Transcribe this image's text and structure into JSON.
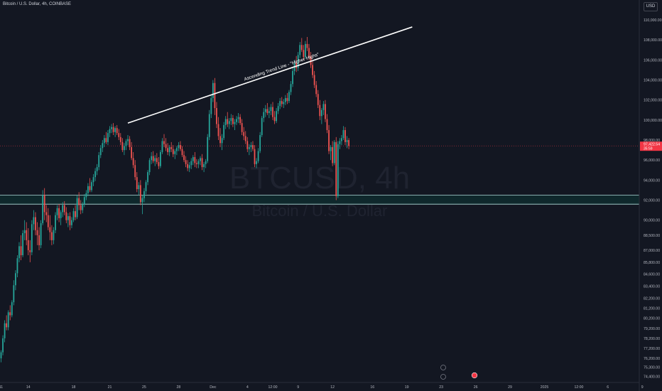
{
  "header": {
    "symbol_text": "Bitcoin / U.S. Dollar, 4h, COINBASE",
    "currency_label": "USD"
  },
  "watermark": {
    "ticker": "BTCUSD, 4h",
    "name": "Bitcoin / U.S. Dollar"
  },
  "annotation": {
    "trendline_label": "Ascending Trend Line - \"Higher Highs\""
  },
  "price_tag": {
    "value": "97,422.54",
    "countdown": "35:59",
    "color": "#f23645"
  },
  "colors": {
    "background": "#131722",
    "up": "#26a69a",
    "down": "#ef5350",
    "zone": "#0f2a2d",
    "zone_border": "#b2dfdb",
    "trendline": "#ffffff",
    "price_line": "#f23645"
  },
  "chart_data": {
    "type": "candlestick",
    "timeframe": "4h",
    "ylim": [
      74000,
      111000
    ],
    "yticks": [
      {
        "value": 110000,
        "label": "110,000.00"
      },
      {
        "value": 108000,
        "label": "108,000.00"
      },
      {
        "value": 106000,
        "label": "106,000.00"
      },
      {
        "value": 104000,
        "label": "104,000.00"
      },
      {
        "value": 102000,
        "label": "102,000.00"
      },
      {
        "value": 100000,
        "label": "100,000.00"
      },
      {
        "value": 98000,
        "label": "98,000.00"
      },
      {
        "value": 96000,
        "label": "96,000.00"
      },
      {
        "value": 94000,
        "label": "94,000.00"
      },
      {
        "value": 92000,
        "label": "92,000.00"
      },
      {
        "value": 90000,
        "label": "90,000.00"
      },
      {
        "value": 88500,
        "label": "88,500.00"
      },
      {
        "value": 87000,
        "label": "87,000.00"
      },
      {
        "value": 85800,
        "label": "85,800.00"
      },
      {
        "value": 84600,
        "label": "84,600.00"
      },
      {
        "value": 83400,
        "label": "83,400.00"
      },
      {
        "value": 82200,
        "label": "82,200.00"
      },
      {
        "value": 81200,
        "label": "81,200.00"
      },
      {
        "value": 80200,
        "label": "80,200.00"
      },
      {
        "value": 79200,
        "label": "79,200.00"
      },
      {
        "value": 78200,
        "label": "78,200.00"
      },
      {
        "value": 77200,
        "label": "77,200.00"
      },
      {
        "value": 76200,
        "label": "76,200.00"
      },
      {
        "value": 75300,
        "label": "75,300.00"
      },
      {
        "value": 74400,
        "label": "74,400.00"
      }
    ],
    "xticks": [
      {
        "bar": 0,
        "label": "11"
      },
      {
        "bar": 15,
        "label": "14"
      },
      {
        "bar": 40,
        "label": "18"
      },
      {
        "bar": 60,
        "label": "21"
      },
      {
        "bar": 79,
        "label": "25"
      },
      {
        "bar": 98,
        "label": "28"
      },
      {
        "bar": 117,
        "label": "Dec"
      },
      {
        "bar": 136,
        "label": "4"
      },
      {
        "bar": 150,
        "label": "12:00"
      },
      {
        "bar": 164,
        "label": "9"
      },
      {
        "bar": 183,
        "label": "12"
      },
      {
        "bar": 205,
        "label": "16"
      },
      {
        "bar": 224,
        "label": "19"
      },
      {
        "bar": 243,
        "label": "23"
      },
      {
        "bar": 262,
        "label": "26"
      },
      {
        "bar": 281,
        "label": "29"
      },
      {
        "bar": 300,
        "label": "2025"
      },
      {
        "bar": 319,
        "label": "12:00"
      },
      {
        "bar": 335,
        "label": "6"
      },
      {
        "bar": 354,
        "label": "9"
      }
    ],
    "support_zone": {
      "low": 91600,
      "high": 92500
    },
    "current_price": 97422.54,
    "trendline": {
      "start": {
        "bar": 70,
        "price": 99700
      },
      "end": {
        "bar": 227,
        "price": 109300
      }
    },
    "ohlc": [
      [
        76200,
        77000,
        75800,
        76800
      ],
      [
        76800,
        78500,
        76500,
        78200
      ],
      [
        78200,
        80000,
        77800,
        79700
      ],
      [
        79700,
        80500,
        79000,
        79300
      ],
      [
        79300,
        81000,
        79000,
        80800
      ],
      [
        80800,
        81500,
        80000,
        80500
      ],
      [
        80500,
        82000,
        80300,
        81800
      ],
      [
        81800,
        84000,
        81500,
        83500
      ],
      [
        83500,
        85000,
        83000,
        84700
      ],
      [
        84700,
        86500,
        84300,
        86200
      ],
      [
        86200,
        87800,
        85800,
        87400
      ],
      [
        87400,
        88500,
        86000,
        86500
      ],
      [
        86500,
        89000,
        86300,
        88700
      ],
      [
        88700,
        90000,
        88000,
        89000
      ],
      [
        89000,
        89800,
        87500,
        88000
      ],
      [
        88000,
        89200,
        86500,
        87000
      ],
      [
        87000,
        88000,
        85800,
        86800
      ],
      [
        86800,
        90000,
        86500,
        89600
      ],
      [
        89600,
        91000,
        89000,
        90300
      ],
      [
        90300,
        90800,
        88500,
        89000
      ],
      [
        89000,
        89800,
        87500,
        88500
      ],
      [
        88500,
        89300,
        87000,
        87500
      ],
      [
        87500,
        90000,
        87200,
        89700
      ],
      [
        89700,
        93000,
        89500,
        92500
      ],
      [
        92500,
        93200,
        90000,
        90800
      ],
      [
        90800,
        91500,
        89800,
        90500
      ],
      [
        90500,
        91200,
        89000,
        89300
      ],
      [
        89300,
        90500,
        88000,
        88800
      ],
      [
        88800,
        89500,
        87500,
        88000
      ],
      [
        88000,
        89300,
        87600,
        89000
      ],
      [
        89000,
        90800,
        88700,
        90500
      ],
      [
        90500,
        91500,
        90000,
        91200
      ],
      [
        91200,
        91600,
        89800,
        90200
      ],
      [
        90200,
        91000,
        89500,
        90800
      ],
      [
        90800,
        91800,
        90300,
        91500
      ],
      [
        91500,
        91900,
        90500,
        90800
      ],
      [
        90800,
        91300,
        89700,
        90000
      ],
      [
        90000,
        90700,
        89300,
        90400
      ],
      [
        90400,
        90800,
        89000,
        89500
      ],
      [
        89500,
        90300,
        89200,
        90000
      ],
      [
        90000,
        91200,
        89800,
        90900
      ],
      [
        90900,
        91500,
        90000,
        90300
      ],
      [
        90300,
        92500,
        90100,
        92200
      ],
      [
        92200,
        92800,
        91000,
        91500
      ],
      [
        91500,
        92000,
        90600,
        91000
      ],
      [
        91000,
        91800,
        90700,
        91600
      ],
      [
        91600,
        92600,
        91300,
        92300
      ],
      [
        92300,
        93000,
        92000,
        92700
      ],
      [
        92700,
        93700,
        92400,
        93400
      ],
      [
        93400,
        94200,
        92800,
        93000
      ],
      [
        93000,
        94000,
        92800,
        93800
      ],
      [
        93800,
        94600,
        93400,
        94300
      ],
      [
        94300,
        95200,
        93900,
        94900
      ],
      [
        94900,
        95600,
        94500,
        95300
      ],
      [
        95300,
        96800,
        95000,
        96500
      ],
      [
        96500,
        97500,
        96200,
        97200
      ],
      [
        97200,
        98000,
        96800,
        97700
      ],
      [
        97700,
        98500,
        97300,
        98200
      ],
      [
        98200,
        98800,
        97600,
        97800
      ],
      [
        97800,
        99000,
        97500,
        98700
      ],
      [
        98700,
        99400,
        98300,
        99100
      ],
      [
        99100,
        99600,
        98700,
        99300
      ],
      [
        99300,
        99700,
        98500,
        98800
      ],
      [
        98800,
        99400,
        98300,
        99200
      ],
      [
        99200,
        99500,
        98500,
        98700
      ],
      [
        98700,
        99100,
        98000,
        98300
      ],
      [
        98300,
        98700,
        97500,
        97800
      ],
      [
        97800,
        98200,
        96800,
        97000
      ],
      [
        97000,
        97700,
        96500,
        97400
      ],
      [
        97400,
        98100,
        97000,
        97900
      ],
      [
        97900,
        98500,
        97500,
        98100
      ],
      [
        98100,
        98400,
        97000,
        97300
      ],
      [
        97300,
        97800,
        96000,
        96200
      ],
      [
        96200,
        96800,
        95200,
        95500
      ],
      [
        95500,
        96000,
        94000,
        94300
      ],
      [
        94300,
        94800,
        92800,
        93100
      ],
      [
        93100,
        93800,
        92500,
        93500
      ],
      [
        93500,
        94000,
        91500,
        91800
      ],
      [
        91800,
        92500,
        90600,
        92200
      ],
      [
        92200,
        93200,
        91800,
        92900
      ],
      [
        92900,
        94000,
        92600,
        93800
      ],
      [
        93800,
        95000,
        93500,
        94800
      ],
      [
        94800,
        96200,
        94500,
        96000
      ],
      [
        96000,
        96800,
        95600,
        96400
      ],
      [
        96400,
        96900,
        95700,
        95900
      ],
      [
        95900,
        96500,
        95400,
        96200
      ],
      [
        96200,
        96700,
        95600,
        95800
      ],
      [
        95800,
        96300,
        95100,
        95400
      ],
      [
        95400,
        97000,
        95200,
        96800
      ],
      [
        96800,
        98200,
        96600,
        97900
      ],
      [
        97900,
        98600,
        97300,
        97600
      ],
      [
        97600,
        98200,
        96900,
        97200
      ],
      [
        97200,
        97700,
        96500,
        96800
      ],
      [
        96800,
        97500,
        96400,
        97300
      ],
      [
        97300,
        97800,
        96800,
        97100
      ],
      [
        97100,
        97500,
        96300,
        96600
      ],
      [
        96600,
        97100,
        96100,
        96900
      ],
      [
        96900,
        97400,
        96500,
        97200
      ],
      [
        97200,
        97800,
        96900,
        97500
      ],
      [
        97500,
        97900,
        96900,
        97100
      ],
      [
        97100,
        97400,
        96300,
        96500
      ],
      [
        96500,
        96900,
        95800,
        96000
      ],
      [
        96000,
        96400,
        95300,
        95600
      ],
      [
        95600,
        96000,
        94900,
        95200
      ],
      [
        95200,
        95800,
        94800,
        95500
      ],
      [
        95500,
        96200,
        95100,
        95900
      ],
      [
        95900,
        96500,
        95500,
        96300
      ],
      [
        96300,
        96800,
        95300,
        95700
      ],
      [
        95700,
        96100,
        95200,
        95600
      ],
      [
        95600,
        96100,
        95200,
        95900
      ],
      [
        95900,
        96400,
        95500,
        96200
      ],
      [
        96200,
        96600,
        95000,
        95300
      ],
      [
        95300,
        95800,
        94800,
        95600
      ],
      [
        95600,
        96100,
        95200,
        95900
      ],
      [
        95900,
        98600,
        95700,
        98300
      ],
      [
        98300,
        101000,
        98000,
        100600
      ],
      [
        100600,
        102500,
        100200,
        102200
      ],
      [
        102200,
        104000,
        101800,
        103700
      ],
      [
        103700,
        104200,
        100500,
        101200
      ],
      [
        101200,
        101800,
        99200,
        99600
      ],
      [
        99600,
        100300,
        98000,
        98400
      ],
      [
        98400,
        99200,
        97300,
        97700
      ],
      [
        97700,
        98600,
        97000,
        98200
      ],
      [
        98200,
        99800,
        98000,
        99500
      ],
      [
        99500,
        100400,
        99100,
        100100
      ],
      [
        100100,
        100800,
        99300,
        99600
      ],
      [
        99600,
        100200,
        99100,
        99900
      ],
      [
        99900,
        100600,
        99500,
        100200
      ],
      [
        100200,
        100500,
        99300,
        99600
      ],
      [
        99600,
        100100,
        99000,
        99800
      ],
      [
        99800,
        100400,
        99500,
        100100
      ],
      [
        100100,
        100700,
        99700,
        100300
      ],
      [
        100300,
        100600,
        99500,
        99700
      ],
      [
        99700,
        100100,
        98500,
        98800
      ],
      [
        98800,
        99300,
        98000,
        98400
      ],
      [
        98400,
        98900,
        97600,
        97900
      ],
      [
        97900,
        98300,
        96800,
        97100
      ],
      [
        97100,
        97600,
        96500,
        97300
      ],
      [
        97300,
        97800,
        96800,
        97500
      ],
      [
        97500,
        97900,
        96900,
        97100
      ],
      [
        97100,
        97500,
        95300,
        95600
      ],
      [
        95600,
        96200,
        95200,
        95900
      ],
      [
        95900,
        97200,
        95700,
        96900
      ],
      [
        96900,
        98800,
        96700,
        98500
      ],
      [
        98500,
        100400,
        98300,
        100200
      ],
      [
        100200,
        101200,
        99800,
        100800
      ],
      [
        100800,
        101500,
        100300,
        101100
      ],
      [
        101100,
        101700,
        100500,
        100700
      ],
      [
        100700,
        101300,
        100200,
        100900
      ],
      [
        100900,
        101600,
        100500,
        101300
      ],
      [
        101300,
        101800,
        100000,
        100300
      ],
      [
        100300,
        100900,
        99600,
        99900
      ],
      [
        99900,
        101200,
        99700,
        100900
      ],
      [
        100900,
        101700,
        100600,
        101400
      ],
      [
        101400,
        102200,
        101100,
        101900
      ],
      [
        101900,
        102300,
        101300,
        101600
      ],
      [
        101600,
        102100,
        101200,
        101800
      ],
      [
        101800,
        102500,
        101500,
        102200
      ],
      [
        102200,
        102700,
        101600,
        101900
      ],
      [
        101900,
        103000,
        101700,
        102800
      ],
      [
        102800,
        103900,
        102500,
        103600
      ],
      [
        103600,
        105200,
        103300,
        104900
      ],
      [
        104900,
        106000,
        104500,
        105700
      ],
      [
        105700,
        106400,
        104800,
        105200
      ],
      [
        105200,
        106800,
        104900,
        106500
      ],
      [
        106500,
        107800,
        106200,
        107500
      ],
      [
        107500,
        108200,
        106800,
        107000
      ],
      [
        107000,
        107500,
        106000,
        106300
      ],
      [
        106300,
        107900,
        106100,
        107600
      ],
      [
        107600,
        108300,
        106900,
        107200
      ],
      [
        107200,
        107600,
        106000,
        106400
      ],
      [
        106400,
        106800,
        105200,
        105500
      ],
      [
        105500,
        105900,
        104200,
        104500
      ],
      [
        104500,
        104900,
        103200,
        103500
      ],
      [
        103500,
        103900,
        102300,
        102600
      ],
      [
        102600,
        103000,
        101200,
        101500
      ],
      [
        101500,
        102000,
        100000,
        100400
      ],
      [
        100400,
        101200,
        99600,
        101000
      ],
      [
        101000,
        101900,
        100500,
        101600
      ],
      [
        101600,
        102000,
        99800,
        100100
      ],
      [
        100100,
        100600,
        98700,
        99000
      ],
      [
        99000,
        99500,
        96600,
        96900
      ],
      [
        96900,
        97500,
        96000,
        97300
      ],
      [
        97300,
        97900,
        95400,
        95700
      ],
      [
        95700,
        98000,
        95500,
        97800
      ],
      [
        97800,
        98300,
        92000,
        92400
      ],
      [
        92400,
        97900,
        92200,
        97600
      ],
      [
        97600,
        98200,
        97100,
        97900
      ],
      [
        97900,
        98500,
        97500,
        98200
      ],
      [
        98200,
        99400,
        98000,
        99000
      ],
      [
        99000,
        99300,
        97500,
        97800
      ],
      [
        97800,
        98400,
        97200,
        98000
      ],
      [
        98000,
        98200,
        97100,
        97422.54
      ]
    ]
  }
}
